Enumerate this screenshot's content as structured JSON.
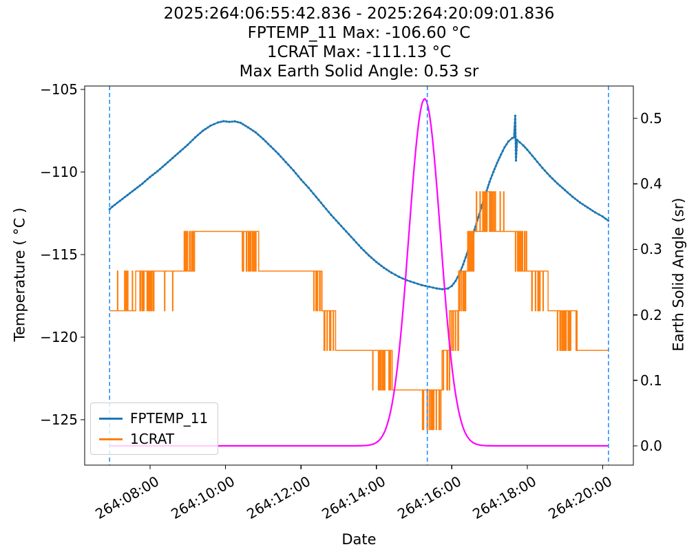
{
  "chart_data": {
    "type": "line",
    "title_lines": [
      "2025:264:06:55:42.836 - 2025:264:20:09:01.836",
      "FPTEMP_11 Max: -106.60 °C",
      "1CRAT Max: -111.13 °C",
      "Max Earth Solid Angle: 0.53 sr"
    ],
    "xlabel": "Date",
    "ylabel_left": "Temperature ( °C )",
    "ylabel_right": "Earth Solid Angle (sr)",
    "xlim": [
      6.2675,
      20.8116
    ],
    "ylim_left": [
      -127.75,
      -104.79
    ],
    "ylim_right": [
      -0.0294,
      0.5494
    ],
    "x_ticks": {
      "values": [
        8,
        10,
        12,
        14,
        16,
        18,
        20
      ],
      "labels": [
        "264:08:00",
        "264:10:00",
        "264:12:00",
        "264:14:00",
        "264:16:00",
        "264:18:00",
        "264:20:00"
      ]
    },
    "y_ticks_left": {
      "values": [
        -105,
        -110,
        -115,
        -120,
        -125
      ],
      "labels": [
        "−105",
        "−110",
        "−115",
        "−120",
        "−125"
      ]
    },
    "y_ticks_right": {
      "values": [
        0.0,
        0.1,
        0.2,
        0.3,
        0.4,
        0.5
      ],
      "labels": [
        "0.0",
        "0.1",
        "0.2",
        "0.3",
        "0.4",
        "0.5"
      ]
    },
    "vlines": {
      "times": [
        6.9286,
        15.35,
        20.1505
      ],
      "color": "#1e90ff",
      "style": "dashed"
    },
    "legend": {
      "location": "lower left",
      "items": [
        {
          "label": "FPTEMP_11",
          "color": "#1f77b4"
        },
        {
          "label": "1CRAT",
          "color": "#ff7f0e"
        }
      ]
    },
    "series": [
      {
        "name": "FPTEMP_11",
        "axis": "left",
        "color": "#1f77b4",
        "points": [
          [
            6.93,
            -112.25
          ],
          [
            7.0,
            -112.1
          ],
          [
            7.2,
            -111.75
          ],
          [
            7.4,
            -111.4
          ],
          [
            7.6,
            -111.05
          ],
          [
            7.8,
            -110.7
          ],
          [
            8.0,
            -110.3
          ],
          [
            8.2,
            -109.95
          ],
          [
            8.4,
            -109.55
          ],
          [
            8.6,
            -109.15
          ],
          [
            8.8,
            -108.75
          ],
          [
            9.0,
            -108.35
          ],
          [
            9.2,
            -107.9
          ],
          [
            9.4,
            -107.5
          ],
          [
            9.6,
            -107.2
          ],
          [
            9.8,
            -107.0
          ],
          [
            9.95,
            -106.92
          ],
          [
            10.1,
            -106.96
          ],
          [
            10.25,
            -106.93
          ],
          [
            10.4,
            -107.02
          ],
          [
            10.6,
            -107.3
          ],
          [
            10.8,
            -107.6
          ],
          [
            11.0,
            -108.0
          ],
          [
            11.2,
            -108.45
          ],
          [
            11.4,
            -108.9
          ],
          [
            11.6,
            -109.4
          ],
          [
            11.8,
            -109.9
          ],
          [
            12.0,
            -110.45
          ],
          [
            12.2,
            -110.95
          ],
          [
            12.4,
            -111.5
          ],
          [
            12.6,
            -112.05
          ],
          [
            12.8,
            -112.6
          ],
          [
            13.0,
            -113.1
          ],
          [
            13.2,
            -113.6
          ],
          [
            13.4,
            -114.1
          ],
          [
            13.6,
            -114.6
          ],
          [
            13.8,
            -115.05
          ],
          [
            14.0,
            -115.45
          ],
          [
            14.2,
            -115.8
          ],
          [
            14.4,
            -116.1
          ],
          [
            14.6,
            -116.35
          ],
          [
            14.8,
            -116.55
          ],
          [
            15.0,
            -116.7
          ],
          [
            15.2,
            -116.85
          ],
          [
            15.4,
            -116.95
          ],
          [
            15.6,
            -117.05
          ],
          [
            15.75,
            -117.1
          ],
          [
            15.9,
            -117.05
          ],
          [
            16.0,
            -116.9
          ],
          [
            16.1,
            -116.6
          ],
          [
            16.2,
            -116.15
          ],
          [
            16.3,
            -115.6
          ],
          [
            16.4,
            -114.95
          ],
          [
            16.5,
            -114.25
          ],
          [
            16.6,
            -113.5
          ],
          [
            16.7,
            -112.75
          ],
          [
            16.8,
            -112.0
          ],
          [
            16.9,
            -111.3
          ],
          [
            17.0,
            -110.6
          ],
          [
            17.1,
            -110.0
          ],
          [
            17.2,
            -109.45
          ],
          [
            17.3,
            -108.95
          ],
          [
            17.4,
            -108.5
          ],
          [
            17.5,
            -108.15
          ],
          [
            17.6,
            -107.95
          ],
          [
            17.65,
            -107.9
          ],
          [
            17.68,
            -106.6
          ],
          [
            17.7,
            -109.3
          ],
          [
            17.73,
            -108.05
          ],
          [
            17.8,
            -108.2
          ],
          [
            17.9,
            -108.4
          ],
          [
            18.0,
            -108.65
          ],
          [
            18.2,
            -109.2
          ],
          [
            18.4,
            -109.75
          ],
          [
            18.6,
            -110.25
          ],
          [
            18.8,
            -110.7
          ],
          [
            19.0,
            -111.1
          ],
          [
            19.2,
            -111.5
          ],
          [
            19.4,
            -111.85
          ],
          [
            19.6,
            -112.15
          ],
          [
            19.8,
            -112.45
          ],
          [
            20.0,
            -112.7
          ],
          [
            20.15,
            -112.95
          ]
        ]
      },
      {
        "name": "1CRAT",
        "axis": "left",
        "color": "#ff7f0e",
        "seed": 11,
        "quantization_step_c": 2.4,
        "segments": [
          {
            "t0": 6.93,
            "t1": 7.08,
            "base": -118.4,
            "spike": -116.0,
            "n": 0
          },
          {
            "t0": 7.08,
            "t1": 7.62,
            "base": -118.4,
            "spike": -116.0,
            "n": 10
          },
          {
            "t0": 7.62,
            "t1": 7.88,
            "base": -116.0,
            "spike": -118.4,
            "n": 5
          },
          {
            "t0": 7.88,
            "t1": 8.14,
            "base": -116.0,
            "spike": -118.4,
            "n": 13
          },
          {
            "t0": 8.14,
            "t1": 8.88,
            "base": -116.0,
            "spike": -118.4,
            "n": 2
          },
          {
            "t0": 8.88,
            "t1": 9.18,
            "base": -116.0,
            "spike": -113.6,
            "n": 12
          },
          {
            "t0": 9.18,
            "t1": 10.42,
            "base": -113.6,
            "spike": -113.6,
            "n": 0
          },
          {
            "t0": 10.42,
            "t1": 10.88,
            "base": -113.6,
            "spike": -116.0,
            "n": 16
          },
          {
            "t0": 10.88,
            "t1": 12.32,
            "base": -116.0,
            "spike": -116.0,
            "n": 0
          },
          {
            "t0": 12.32,
            "t1": 12.56,
            "base": -116.0,
            "spike": -118.4,
            "n": 9
          },
          {
            "t0": 12.56,
            "t1": 12.92,
            "base": -118.4,
            "spike": -120.8,
            "n": 8
          },
          {
            "t0": 12.92,
            "t1": 13.88,
            "base": -120.8,
            "spike": -120.8,
            "n": 0
          },
          {
            "t0": 13.88,
            "t1": 14.42,
            "base": -120.8,
            "spike": -123.2,
            "n": 13
          },
          {
            "t0": 14.42,
            "t1": 15.16,
            "base": -123.2,
            "spike": -123.2,
            "n": 0
          },
          {
            "t0": 15.16,
            "t1": 15.74,
            "base": -123.2,
            "spike": -125.6,
            "n": 17
          },
          {
            "t0": 15.74,
            "t1": 15.94,
            "base": -120.8,
            "spike": -123.2,
            "n": 5
          },
          {
            "t0": 15.94,
            "t1": 16.18,
            "base": -118.4,
            "spike": -120.8,
            "n": 6
          },
          {
            "t0": 16.18,
            "t1": 16.42,
            "base": -116.0,
            "spike": -118.4,
            "n": 7
          },
          {
            "t0": 16.42,
            "t1": 16.64,
            "base": -113.6,
            "spike": -116.0,
            "n": 7
          },
          {
            "t0": 16.64,
            "t1": 16.88,
            "base": -113.6,
            "spike": -111.2,
            "n": 5
          },
          {
            "t0": 16.88,
            "t1": 17.12,
            "base": -111.2,
            "spike": -113.6,
            "n": 10
          },
          {
            "t0": 17.12,
            "t1": 17.38,
            "base": -113.6,
            "spike": -111.2,
            "n": 3
          },
          {
            "t0": 17.38,
            "t1": 17.82,
            "base": -113.6,
            "spike": -116.0,
            "n": 4
          },
          {
            "t0": 17.82,
            "t1": 18.08,
            "base": -116.0,
            "spike": -113.6,
            "n": 5
          },
          {
            "t0": 18.08,
            "t1": 18.55,
            "base": -116.0,
            "spike": -118.4,
            "n": 7
          },
          {
            "t0": 18.55,
            "t1": 18.78,
            "base": -118.4,
            "spike": -118.4,
            "n": 0
          },
          {
            "t0": 18.78,
            "t1": 19.32,
            "base": -118.4,
            "spike": -120.8,
            "n": 15
          },
          {
            "t0": 19.32,
            "t1": 20.15,
            "base": -120.8,
            "spike": -120.8,
            "n": 0
          }
        ]
      },
      {
        "name": "Earth Solid Angle",
        "axis": "right",
        "color": "#ff00ff",
        "t_start": 6.9286,
        "t_end": 20.1505,
        "model": {
          "shape": "gaussian",
          "baseline": 0.0,
          "peak": 0.53,
          "center": 15.28,
          "sigma": 0.42
        }
      }
    ]
  }
}
